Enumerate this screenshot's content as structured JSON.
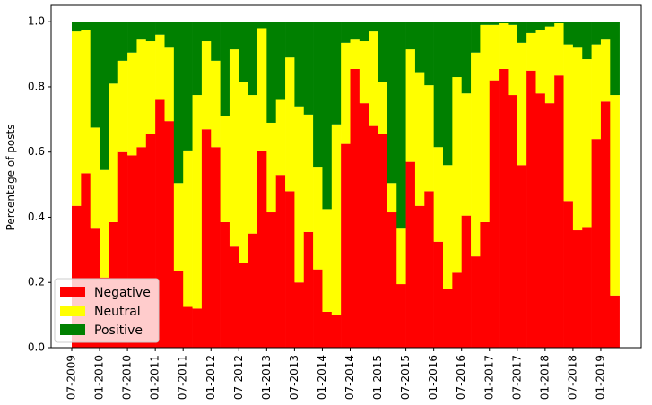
{
  "chart_data": {
    "type": "stacked_bar",
    "ylabel": "Percentage of posts",
    "categories": [
      "07-2009",
      null,
      null,
      "01-2010",
      null,
      null,
      "07-2010",
      null,
      null,
      "01-2011",
      null,
      null,
      "07-2011",
      null,
      null,
      "01-2012",
      null,
      null,
      "07-2012",
      null,
      null,
      "01-2013",
      null,
      null,
      "07-2013",
      null,
      null,
      "01-2014",
      null,
      null,
      "07-2014",
      null,
      null,
      "01-2015",
      null,
      null,
      "07-2015",
      null,
      null,
      "01-2016",
      null,
      null,
      "07-2016",
      null,
      null,
      "01-2017",
      null,
      null,
      "07-2017",
      null,
      null,
      "01-2018",
      null,
      null,
      "07-2018",
      null,
      null,
      "01-2019",
      null
    ],
    "series": [
      {
        "name": "Negative",
        "color": "#ff0000",
        "values": [
          0.435,
          0.535,
          0.365,
          0.215,
          0.385,
          0.6,
          0.59,
          0.615,
          0.655,
          0.76,
          0.695,
          0.235,
          0.125,
          0.12,
          0.67,
          0.615,
          0.385,
          0.31,
          0.26,
          0.35,
          0.605,
          0.415,
          0.53,
          0.48,
          0.2,
          0.355,
          0.24,
          0.11,
          0.1,
          0.625,
          0.855,
          0.75,
          0.68,
          0.655,
          0.415,
          0.195,
          0.57,
          0.435,
          0.48,
          0.325,
          0.18,
          0.23,
          0.405,
          0.28,
          0.385,
          0.82,
          0.855,
          0.775,
          0.56,
          0.85,
          0.78,
          0.75,
          0.835,
          0.45,
          0.36,
          0.37,
          0.64,
          0.755,
          0.16
        ]
      },
      {
        "name": "Neutral",
        "color": "#ffff00",
        "values": [
          0.535,
          0.44,
          0.31,
          0.33,
          0.425,
          0.28,
          0.315,
          0.33,
          0.285,
          0.2,
          0.225,
          0.27,
          0.48,
          0.655,
          0.27,
          0.265,
          0.325,
          0.605,
          0.555,
          0.425,
          0.375,
          0.275,
          0.23,
          0.41,
          0.54,
          0.36,
          0.315,
          0.315,
          0.585,
          0.31,
          0.09,
          0.19,
          0.29,
          0.16,
          0.09,
          0.17,
          0.345,
          0.41,
          0.325,
          0.29,
          0.38,
          0.6,
          0.375,
          0.625,
          0.605,
          0.17,
          0.14,
          0.215,
          0.375,
          0.115,
          0.195,
          0.235,
          0.16,
          0.48,
          0.56,
          0.515,
          0.29,
          0.19,
          0.615
        ]
      },
      {
        "name": "Positive",
        "color": "#008000",
        "values": [
          0.03,
          0.025,
          0.325,
          0.455,
          0.19,
          0.12,
          0.095,
          0.055,
          0.06,
          0.04,
          0.08,
          0.495,
          0.395,
          0.225,
          0.06,
          0.12,
          0.29,
          0.085,
          0.185,
          0.225,
          0.02,
          0.31,
          0.24,
          0.11,
          0.26,
          0.285,
          0.445,
          0.575,
          0.315,
          0.065,
          0.055,
          0.06,
          0.03,
          0.185,
          0.495,
          0.635,
          0.085,
          0.155,
          0.195,
          0.385,
          0.44,
          0.17,
          0.22,
          0.095,
          0.01,
          0.01,
          0.005,
          0.01,
          0.065,
          0.035,
          0.025,
          0.015,
          0.005,
          0.07,
          0.08,
          0.115,
          0.07,
          0.055,
          0.225
        ]
      }
    ],
    "ylim": [
      0,
      1.05
    ],
    "yticks": [
      {
        "value": 0,
        "label": "0.0"
      },
      {
        "value": 0.2,
        "label": "0.2"
      },
      {
        "value": 0.4,
        "label": "0.4"
      },
      {
        "value": 0.6,
        "label": "0.6"
      },
      {
        "value": 0.8,
        "label": "0.8"
      },
      {
        "value": 1.0,
        "label": "1.0"
      }
    ],
    "legend": "lower left"
  }
}
